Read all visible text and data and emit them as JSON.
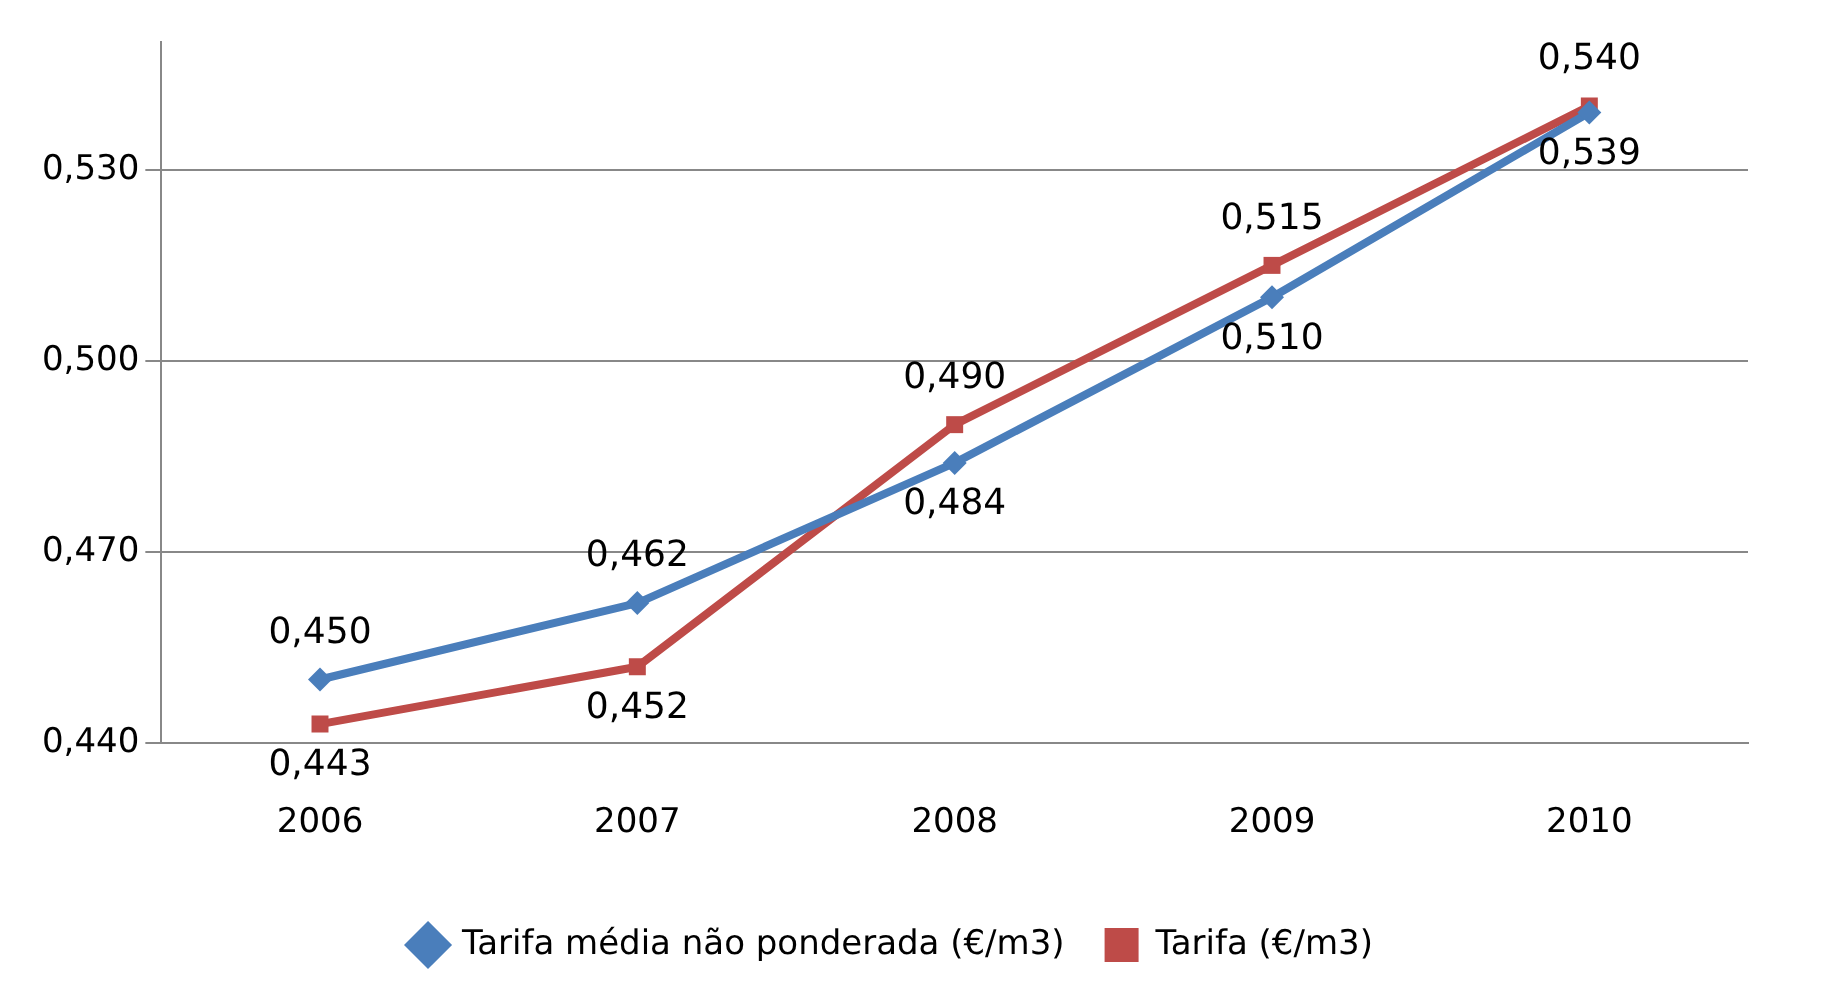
{
  "chart_data": {
    "type": "line",
    "categories": [
      "2006",
      "2007",
      "2008",
      "2009",
      "2010"
    ],
    "series": [
      {
        "name": "Tarifa média não ponderada (€/m3)",
        "color": "#4a7ebb",
        "marker": "diamond",
        "values": [
          0.45,
          0.462,
          0.484,
          0.51,
          0.539
        ],
        "value_labels": [
          "0,450",
          "0,462",
          "0,484",
          "0,510",
          "0,539"
        ]
      },
      {
        "name": "Tarifa (€/m3)",
        "color": "#be4b48",
        "marker": "square",
        "values": [
          0.443,
          0.452,
          0.49,
          0.515,
          0.54
        ],
        "value_labels": [
          "0,443",
          "0,452",
          "0,490",
          "0,515",
          "0,540"
        ]
      }
    ],
    "ylim": [
      0.44,
      0.55
    ],
    "yticks": [
      {
        "value": 0.44,
        "label": "0,440"
      },
      {
        "value": 0.47,
        "label": "0,470"
      },
      {
        "value": 0.5,
        "label": "0,500"
      },
      {
        "value": 0.53,
        "label": "0,530"
      }
    ],
    "grid": "y",
    "legend": "bottom",
    "line_style": "solid"
  }
}
